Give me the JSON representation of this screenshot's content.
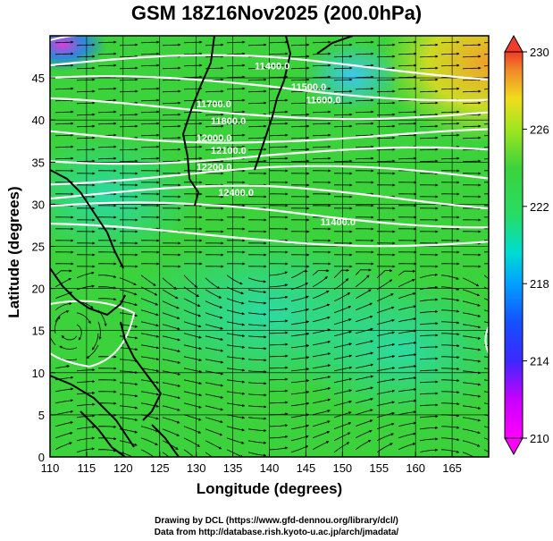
{
  "title": "GSM 18Z16Nov2025 (200.0hPa)",
  "x_axis": {
    "label": "Longitude (degrees)",
    "ticks": [
      "110",
      "115",
      "120",
      "125",
      "130",
      "135",
      "140",
      "145",
      "150",
      "155",
      "160",
      "165"
    ]
  },
  "y_axis": {
    "label": "Latitude  (degrees)",
    "ticks": [
      "0",
      "5",
      "10",
      "15",
      "20",
      "25",
      "30",
      "35",
      "40",
      "45"
    ]
  },
  "colorbar": {
    "ticks": [
      "210",
      "214",
      "218",
      "222",
      "226",
      "230"
    ],
    "min": 210,
    "max": 230
  },
  "contours": {
    "line_color": "#ffffff",
    "labels": [
      "11400.0",
      "11500.0",
      "11600.0",
      "11700.0",
      "11800.0",
      "12000.0",
      "12100.0",
      "12200.0",
      "12400.0"
    ]
  },
  "credits": {
    "line1": "Drawing by DCL (https://www.gfd-dennou.org/library/dcl/)",
    "line2": "Data from http://database.rish.kyoto-u.ac.jp/arch/jmadata/"
  },
  "map_data": {
    "lon_range": [
      110,
      170
    ],
    "lat_range": [
      0,
      50
    ],
    "colors": {
      "green": "#3cd23c",
      "teal": "#28d7a0",
      "cyan": "#3cc8ff",
      "yellow": "#f0dc1e",
      "orange": "#f08c28",
      "magenta": "#e13cdc",
      "blue": "#2878ff"
    }
  }
}
